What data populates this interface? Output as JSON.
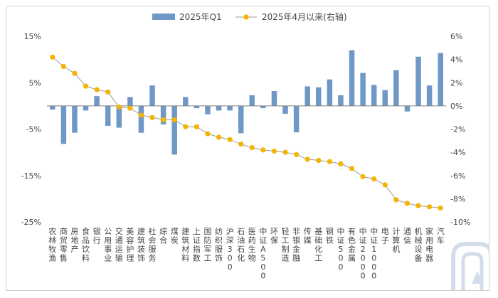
{
  "colors": {
    "bar": "#6f98c6",
    "line": "#9a9a9a",
    "marker": "#f4b400",
    "axis_text": "#444444",
    "zero_line": "#7f7f7f",
    "watermark": "#d3ddea"
  },
  "chart_data": {
    "type": "bar+line",
    "legend": {
      "position": "top",
      "entries": [
        "2025年Q1",
        "2025年4月以来(右轴)"
      ]
    },
    "y_left": {
      "ylim": [
        -25,
        15
      ],
      "ticks": [
        15,
        5,
        -5,
        -15,
        -25
      ],
      "tick_labels": [
        "15%",
        "5%",
        "-5%",
        "-15%",
        "-25%"
      ]
    },
    "y_right": {
      "ylim": [
        -10,
        6
      ],
      "ticks": [
        6,
        4,
        2,
        0,
        -2,
        -4,
        -6,
        -8,
        -10
      ],
      "tick_labels": [
        "6%",
        "4%",
        "2%",
        "0%",
        "-2%",
        "-4%",
        "-6%",
        "-8%",
        "-10%"
      ]
    },
    "categories": [
      "农林牧渔",
      "商贸零售",
      "房地产",
      "食品饮料",
      "银行",
      "公用事业",
      "交通运输",
      "美容护理",
      "建筑装饰",
      "社会服务",
      "综合",
      "煤炭",
      "建筑材料",
      "上证指数",
      "国防军工",
      "纺织服饰",
      "沪深300",
      "石油石化",
      "医药生物",
      "中证A500",
      "环保",
      "轻工制造",
      "非银金融",
      "传媒",
      "基础化工",
      "钢铁",
      "中证500",
      "有色金属",
      "中证2000",
      "中证1000",
      "电子",
      "计算机",
      "通信",
      "机械设备",
      "家用电器",
      "汽车"
    ],
    "category_labels": [
      [
        "农",
        "林",
        "牧",
        "渔"
      ],
      [
        "商",
        "贸",
        "零",
        "售"
      ],
      [
        "房",
        "地",
        "产"
      ],
      [
        "食",
        "品",
        "饮",
        "料"
      ],
      [
        "银",
        "行"
      ],
      [
        "公",
        "用",
        "事",
        "业"
      ],
      [
        "交",
        "通",
        "运",
        "输"
      ],
      [
        "美",
        "容",
        "护",
        "理"
      ],
      [
        "建",
        "筑",
        "装",
        "饰"
      ],
      [
        "社",
        "会",
        "服",
        "务"
      ],
      [
        "综",
        "合"
      ],
      [
        "煤",
        "炭"
      ],
      [
        "建",
        "筑",
        "材",
        "料"
      ],
      [
        "上",
        "证",
        "指",
        "数"
      ],
      [
        "国",
        "防",
        "军",
        "工"
      ],
      [
        "纺",
        "织",
        "服",
        "饰"
      ],
      [
        "沪",
        "深",
        "3",
        "0",
        "0"
      ],
      [
        "石",
        "油",
        "石",
        "化"
      ],
      [
        "医",
        "药",
        "生",
        "物"
      ],
      [
        "中",
        "证",
        "A",
        "5",
        "0",
        "0"
      ],
      [
        "环",
        "保"
      ],
      [
        "轻",
        "工",
        "制",
        "造"
      ],
      [
        "非",
        "银",
        "金",
        "融"
      ],
      [
        "传",
        "媒"
      ],
      [
        "基",
        "础",
        "化",
        "工"
      ],
      [
        "钢",
        "铁"
      ],
      [
        "中",
        "证",
        "5",
        "0",
        "0"
      ],
      [
        "有",
        "色",
        "金",
        "属"
      ],
      [
        "中",
        "证",
        "2",
        "0",
        "0",
        "0"
      ],
      [
        "中",
        "证",
        "1",
        "0",
        "0",
        "0"
      ],
      [
        "电",
        "子"
      ],
      [
        "计",
        "算",
        "机"
      ],
      [
        "通",
        "信"
      ],
      [
        "机",
        "械",
        "设",
        "备"
      ],
      [
        "家",
        "用",
        "电",
        "器"
      ],
      [
        "汽",
        "车"
      ]
    ],
    "series": [
      {
        "name": "2025年Q1",
        "type": "bar",
        "axis": "left",
        "values": [
          -0.8,
          -8.2,
          -5.8,
          -1.0,
          2.1,
          -4.3,
          -4.7,
          1.9,
          -5.8,
          4.4,
          -4.0,
          -10.5,
          1.9,
          -0.5,
          -1.8,
          -1.0,
          -1.0,
          -5.9,
          2.3,
          -0.5,
          3.2,
          -1.7,
          -5.7,
          4.2,
          4.0,
          5.7,
          2.3,
          12.0,
          7.1,
          4.5,
          3.4,
          7.7,
          -1.2,
          10.6,
          4.4,
          11.4
        ]
      },
      {
        "name": "2025年4月以来(右轴)",
        "type": "line",
        "axis": "right",
        "values": [
          4.2,
          3.4,
          2.8,
          1.7,
          1.4,
          1.2,
          -0.1,
          -0.2,
          -0.8,
          -1.0,
          -1.2,
          -1.2,
          -1.8,
          -1.8,
          -2.4,
          -2.7,
          -2.9,
          -3.3,
          -3.6,
          -3.8,
          -3.9,
          -4.0,
          -4.2,
          -4.6,
          -4.7,
          -4.8,
          -5.0,
          -5.4,
          -6.1,
          -6.3,
          -6.8,
          -8.1,
          -8.4,
          -8.6,
          -8.7,
          -8.8
        ]
      }
    ]
  }
}
